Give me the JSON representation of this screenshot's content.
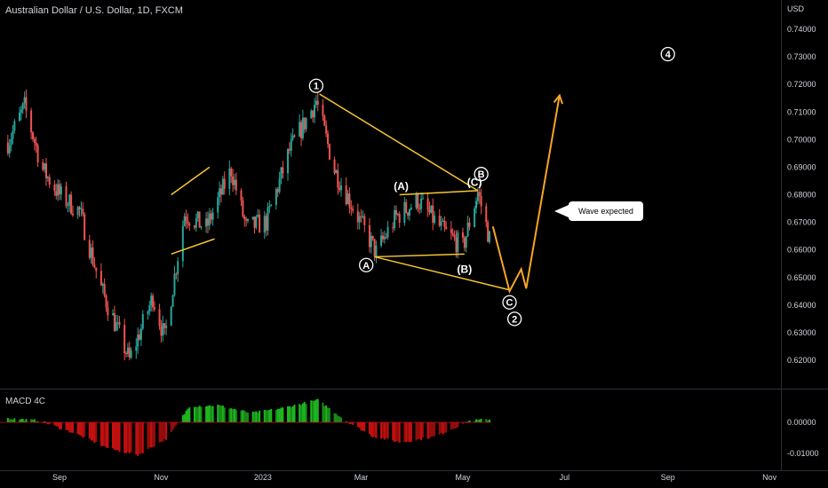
{
  "header": {
    "title": "Australian Dollar / U.S. Dollar, 1D, FXCM"
  },
  "indicator": {
    "title": "MACD 4C"
  },
  "colors": {
    "up": "#26a69a",
    "down": "#ef5350",
    "hist_up": "#1fb51f",
    "hist_down": "#c41010",
    "wave_line": "#f7c531",
    "projection": "#f5a623",
    "label": "#ffffff"
  },
  "chart_data": {
    "type": "candlestick",
    "currency": "USD",
    "y_ticks": [
      "0.74000",
      "0.73000",
      "0.72000",
      "0.71000",
      "0.70000",
      "0.69000",
      "0.68000",
      "0.67000",
      "0.66000",
      "0.65000",
      "0.64000",
      "0.63000",
      "0.62000"
    ],
    "ylim": [
      0.6085,
      0.7445
    ],
    "macd_ticks": [
      "0.00000",
      "-0.01000"
    ],
    "x_labels": [
      "Sep",
      "Nov",
      "2023",
      "Mar",
      "May",
      "Jul",
      "Sep",
      "Nov"
    ],
    "price_path": [
      {
        "date": "2022-08-01",
        "price": 0.699
      },
      {
        "date": "2022-08-11",
        "price": 0.712
      },
      {
        "date": "2022-08-22",
        "price": 0.689
      },
      {
        "date": "2022-09-01",
        "price": 0.68
      },
      {
        "date": "2022-09-13",
        "price": 0.674
      },
      {
        "date": "2022-09-26",
        "price": 0.646
      },
      {
        "date": "2022-10-13",
        "price": 0.62
      },
      {
        "date": "2022-10-27",
        "price": 0.643
      },
      {
        "date": "2022-11-03",
        "price": 0.628
      },
      {
        "date": "2022-11-15",
        "price": 0.673
      },
      {
        "date": "2022-11-28",
        "price": 0.668
      },
      {
        "date": "2022-12-13",
        "price": 0.689
      },
      {
        "date": "2022-12-22",
        "price": 0.668
      },
      {
        "date": "2023-01-03",
        "price": 0.67
      },
      {
        "date": "2023-01-17",
        "price": 0.696
      },
      {
        "date": "2023-02-02",
        "price": 0.714
      },
      {
        "date": "2023-02-13",
        "price": 0.689
      },
      {
        "date": "2023-02-27",
        "price": 0.672
      },
      {
        "date": "2023-03-10",
        "price": 0.659
      },
      {
        "date": "2023-03-22",
        "price": 0.672
      },
      {
        "date": "2023-04-04",
        "price": 0.678
      },
      {
        "date": "2023-04-19",
        "price": 0.667
      },
      {
        "date": "2023-05-01",
        "price": 0.661
      },
      {
        "date": "2023-05-10",
        "price": 0.681
      },
      {
        "date": "2023-05-17",
        "price": 0.664
      }
    ],
    "macd_path": [
      {
        "date": "2022-08-01",
        "value": 0.0013
      },
      {
        "date": "2022-08-20",
        "value": 0.0005
      },
      {
        "date": "2022-09-10",
        "value": -0.0035
      },
      {
        "date": "2022-10-01",
        "value": -0.0085
      },
      {
        "date": "2022-10-18",
        "value": -0.0105
      },
      {
        "date": "2022-11-05",
        "value": -0.005
      },
      {
        "date": "2022-11-18",
        "value": 0.0052
      },
      {
        "date": "2022-12-05",
        "value": 0.0055
      },
      {
        "date": "2022-12-25",
        "value": 0.003
      },
      {
        "date": "2023-01-12",
        "value": 0.0045
      },
      {
        "date": "2023-02-03",
        "value": 0.0072
      },
      {
        "date": "2023-02-20",
        "value": 0.0005
      },
      {
        "date": "2023-03-08",
        "value": -0.0045
      },
      {
        "date": "2023-03-25",
        "value": -0.0065
      },
      {
        "date": "2023-04-15",
        "value": -0.0045
      },
      {
        "date": "2023-05-05",
        "value": 0.0005
      },
      {
        "date": "2023-05-17",
        "value": 0.001
      }
    ],
    "wave_lines": [
      [
        {
          "date": "2023-02-04",
          "price": 0.7165
        },
        {
          "date": "2023-05-10",
          "price": 0.6815
        }
      ],
      [
        {
          "date": "2023-03-09",
          "price": 0.6575
        },
        {
          "date": "2023-05-29",
          "price": 0.6455
        }
      ],
      [
        {
          "date": "2023-03-24",
          "price": 0.68
        },
        {
          "date": "2023-05-10",
          "price": 0.6815
        }
      ],
      [
        {
          "date": "2023-03-09",
          "price": 0.6575
        },
        {
          "date": "2023-05-02",
          "price": 0.6585
        }
      ],
      [
        {
          "date": "2022-11-07",
          "price": 0.68
        },
        {
          "date": "2022-11-30",
          "price": 0.69
        }
      ],
      [
        {
          "date": "2022-11-07",
          "price": 0.6585
        },
        {
          "date": "2022-12-03",
          "price": 0.664
        }
      ]
    ],
    "projection": [
      {
        "date": "2023-05-19",
        "price": 0.6685
      },
      {
        "date": "2023-05-29",
        "price": 0.645
      },
      {
        "date": "2023-06-05",
        "price": 0.653
      },
      {
        "date": "2023-06-08",
        "price": 0.646
      },
      {
        "date": "2023-06-28",
        "price": 0.716
      }
    ],
    "wave_labels": [
      {
        "text": "1",
        "date": "2023-02-02",
        "price": 0.7195,
        "circled": true
      },
      {
        "text": "A",
        "date": "2023-03-04",
        "price": 0.6545,
        "circled": true
      },
      {
        "text": "B",
        "date": "2023-05-12",
        "price": 0.6875,
        "circled": true
      },
      {
        "text": "C",
        "date": "2023-05-29",
        "price": 0.641,
        "circled": true
      },
      {
        "text": "2",
        "date": "2023-06-01",
        "price": 0.635,
        "circled": true
      },
      {
        "text": "4",
        "date": "2023-09-01",
        "price": 0.731,
        "circled": true
      },
      {
        "text": "(A)",
        "date": "2023-03-25",
        "price": 0.683,
        "circled": false
      },
      {
        "text": "(C)",
        "date": "2023-05-08",
        "price": 0.6845,
        "circled": false
      },
      {
        "text": "(B)",
        "date": "2023-05-02",
        "price": 0.653,
        "circled": false
      }
    ],
    "annotation": {
      "text": "Wave expected",
      "date": "2023-06-05",
      "price": 0.6705
    }
  }
}
